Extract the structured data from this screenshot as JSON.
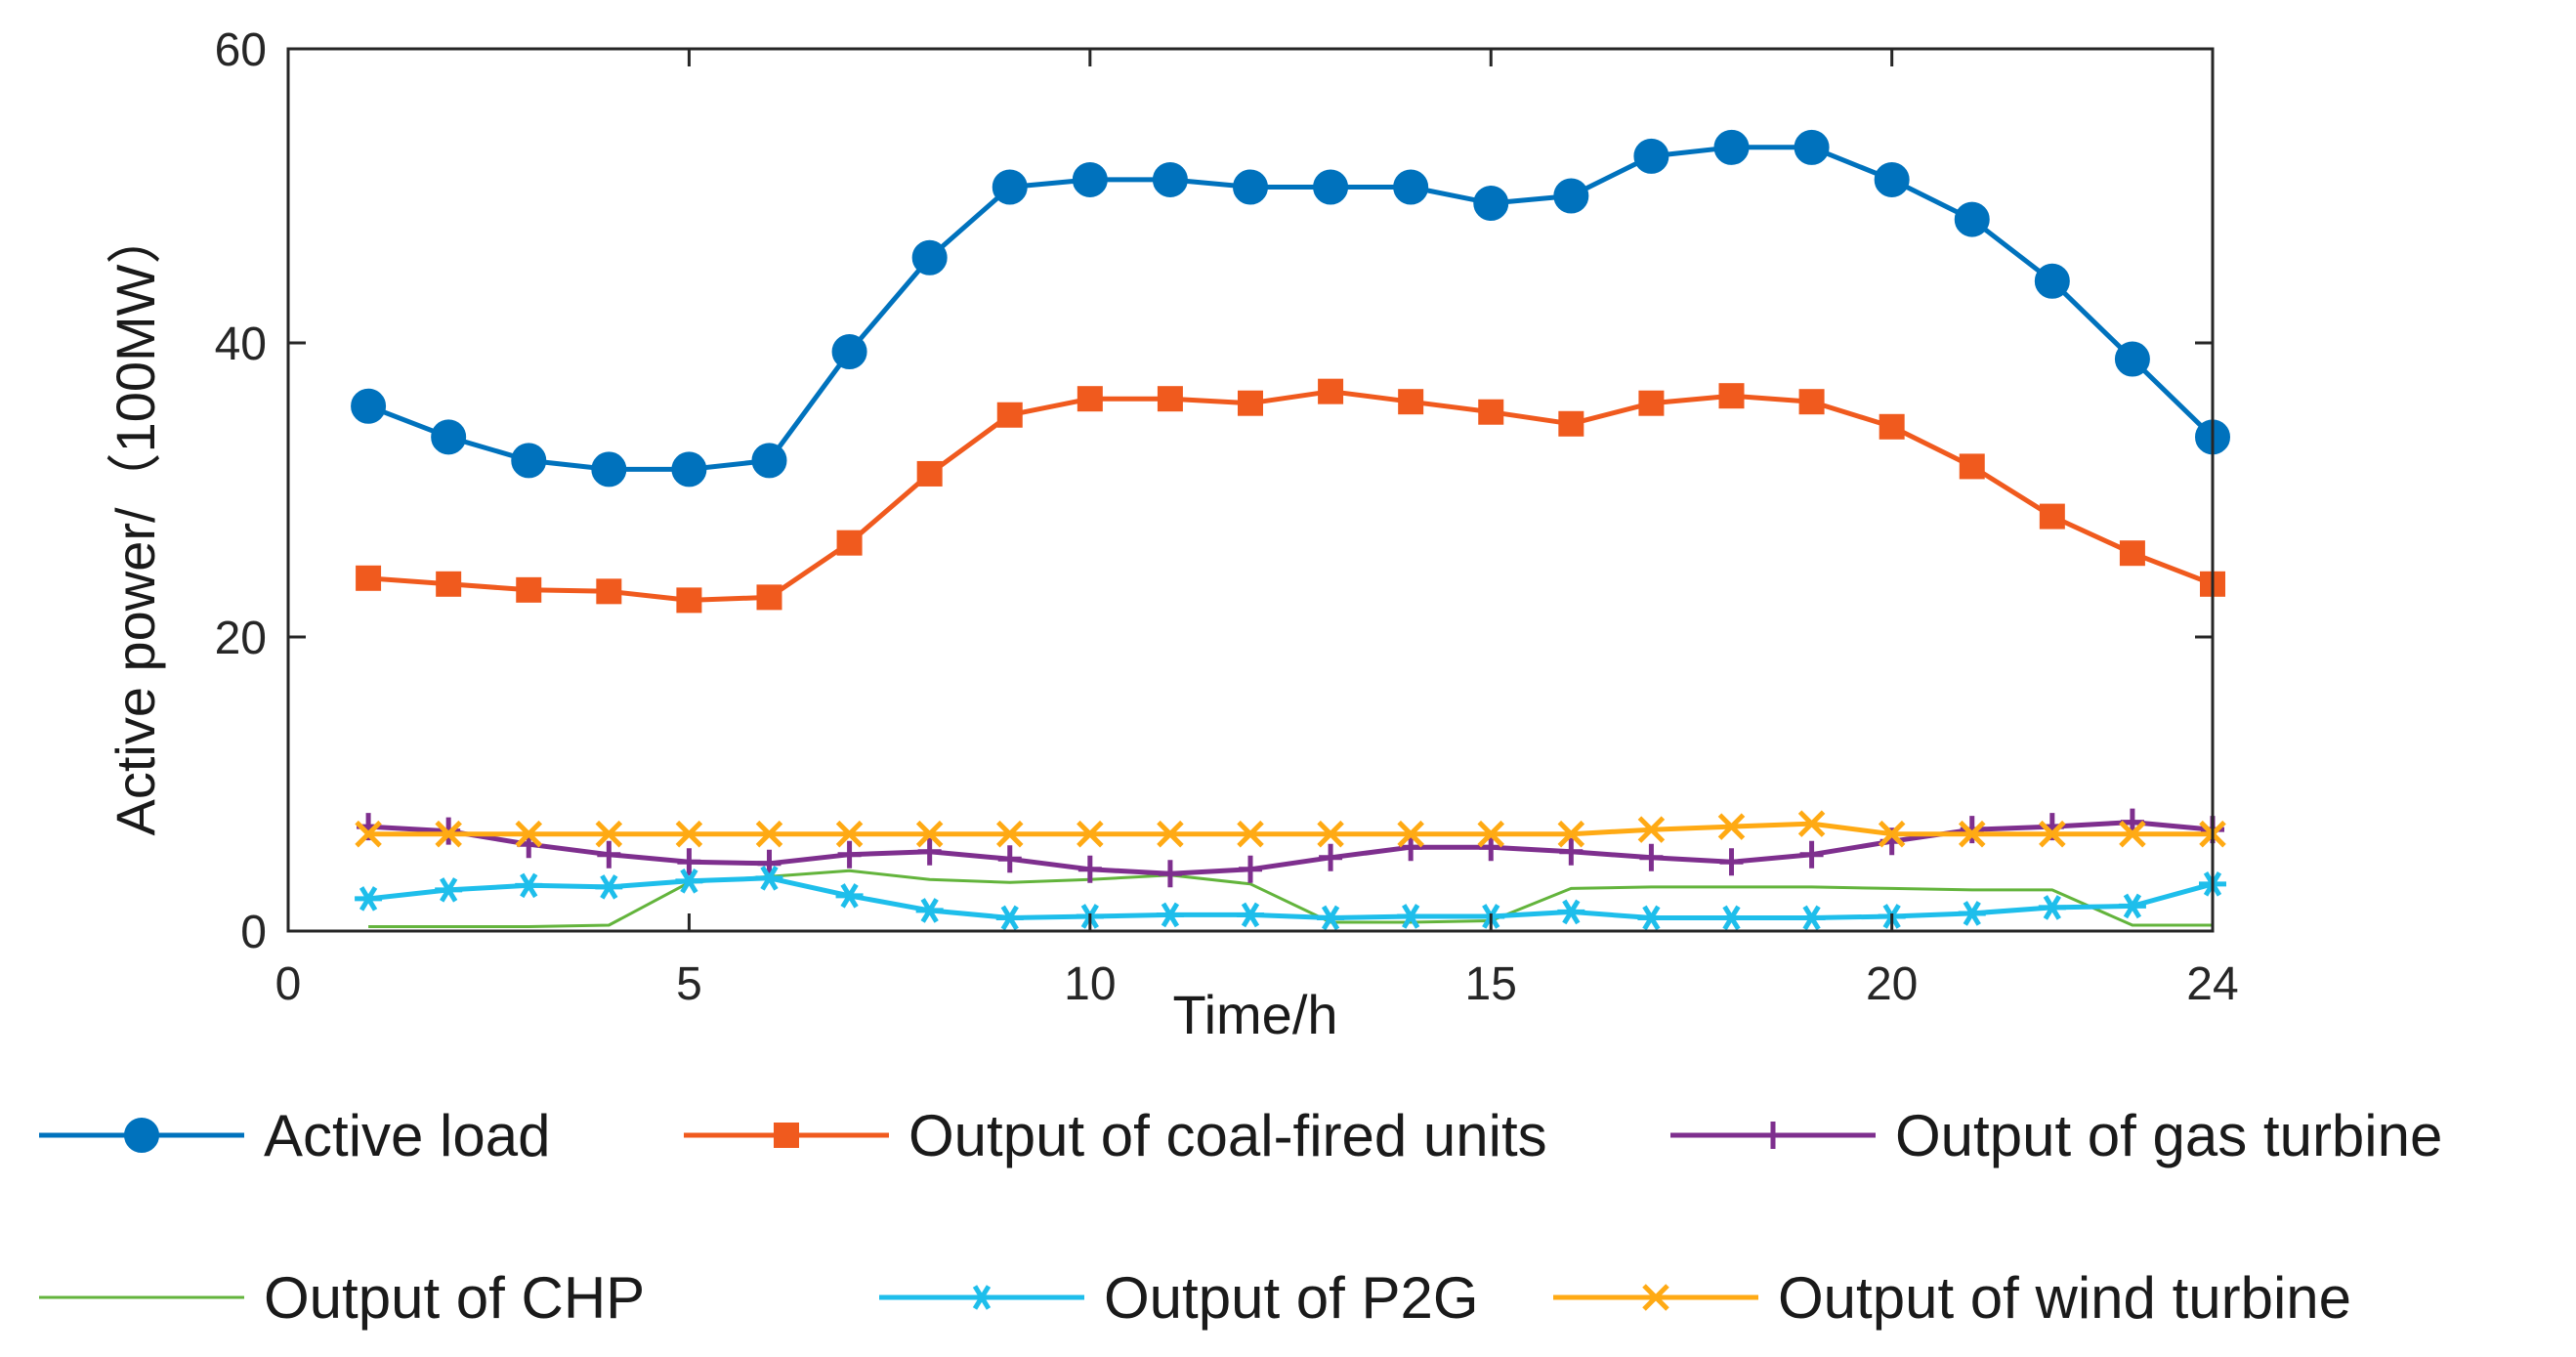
{
  "chart_data": {
    "type": "line",
    "xlabel": "Time/h",
    "ylabel": "Active power/（100MW）",
    "xlim": [
      0,
      24
    ],
    "ylim": [
      0,
      60
    ],
    "xticks": [
      0,
      5,
      10,
      15,
      20,
      24
    ],
    "yticks": [
      0,
      20,
      40,
      60
    ],
    "grid": false,
    "legend_position": "bottom",
    "x": [
      1,
      2,
      3,
      4,
      5,
      6,
      7,
      8,
      9,
      10,
      11,
      12,
      13,
      14,
      15,
      16,
      17,
      18,
      19,
      20,
      21,
      22,
      23,
      24
    ],
    "series": [
      {
        "name": "Active load",
        "color": "#0072BD",
        "marker": "circle",
        "values": [
          35.7,
          33.6,
          32.0,
          31.4,
          31.4,
          32.0,
          39.4,
          45.8,
          50.6,
          51.1,
          51.1,
          50.6,
          50.6,
          50.6,
          49.5,
          50.0,
          52.7,
          53.3,
          53.3,
          51.1,
          48.4,
          44.2,
          38.9,
          33.6
        ]
      },
      {
        "name": "Output of coal-fired units",
        "color": "#F05A1E",
        "marker": "square",
        "values": [
          24.0,
          23.6,
          23.2,
          23.1,
          22.5,
          22.7,
          26.4,
          31.1,
          35.1,
          36.2,
          36.2,
          35.9,
          36.7,
          36.0,
          35.3,
          34.5,
          35.9,
          36.4,
          36.0,
          34.3,
          31.6,
          28.2,
          25.7,
          23.6
        ]
      },
      {
        "name": "Output of gas turbine",
        "color": "#7E2F8E",
        "marker": "plus",
        "values": [
          7.1,
          6.8,
          5.9,
          5.2,
          4.7,
          4.6,
          5.2,
          5.4,
          4.9,
          4.2,
          3.9,
          4.2,
          5.0,
          5.7,
          5.7,
          5.4,
          5.0,
          4.7,
          5.2,
          6.1,
          6.9,
          7.1,
          7.4,
          6.9
        ]
      },
      {
        "name": "Output of CHP",
        "color": "#63B43C",
        "marker": "none",
        "values": [
          0.3,
          0.3,
          0.3,
          0.4,
          3.3,
          3.7,
          4.1,
          3.5,
          3.3,
          3.5,
          3.8,
          3.2,
          0.6,
          0.6,
          0.7,
          2.9,
          3.0,
          3.0,
          3.0,
          2.9,
          2.8,
          2.8,
          0.4,
          0.4
        ]
      },
      {
        "name": "Output of P2G",
        "color": "#1EBEEB",
        "marker": "asterisk",
        "values": [
          2.2,
          2.8,
          3.1,
          3.0,
          3.4,
          3.6,
          2.4,
          1.4,
          0.9,
          1.0,
          1.1,
          1.1,
          0.9,
          1.0,
          1.0,
          1.3,
          0.9,
          0.9,
          0.9,
          1.0,
          1.2,
          1.6,
          1.7,
          3.2
        ]
      },
      {
        "name": "Output of wind turbine",
        "color": "#FFAA14",
        "marker": "x",
        "values": [
          6.6,
          6.6,
          6.6,
          6.6,
          6.6,
          6.6,
          6.6,
          6.6,
          6.6,
          6.6,
          6.6,
          6.6,
          6.6,
          6.6,
          6.6,
          6.6,
          6.9,
          7.1,
          7.3,
          6.6,
          6.6,
          6.6,
          6.6,
          6.6
        ]
      }
    ]
  }
}
